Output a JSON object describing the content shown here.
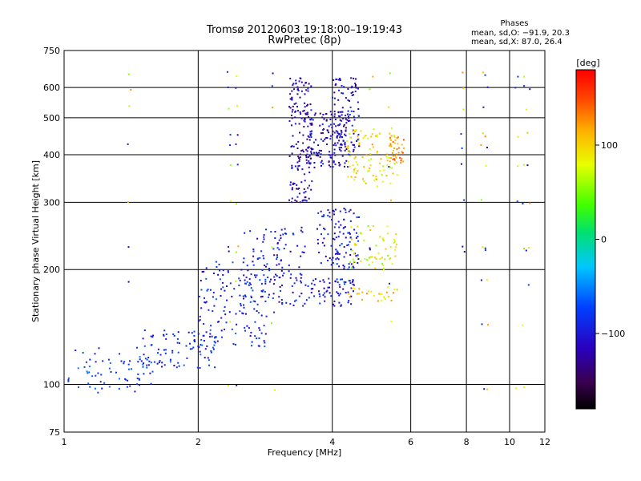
{
  "chart_data": {
    "type": "scatter",
    "title": "Tromsø 20120603 19:18:00–19:19:43",
    "subtitle": "RwPretec (8p)",
    "xlabel": "Frequency [MHz]",
    "ylabel": "Stationary phase Virtual Height [km]",
    "xscale": "log",
    "yscale": "log",
    "xlim": [
      1,
      12
    ],
    "ylim": [
      75,
      750
    ],
    "xticks": [
      1,
      2,
      4,
      6,
      8,
      10,
      12
    ],
    "xtick_labels": [
      "1",
      "2",
      "4",
      "6",
      "8",
      "10",
      "12"
    ],
    "yticks": [
      75,
      100,
      200,
      300,
      400,
      500,
      600,
      750
    ],
    "ytick_labels": [
      "75",
      "100",
      "200",
      "300",
      "400",
      "500",
      "600",
      "750"
    ],
    "grid": true,
    "phases_box": {
      "header": "Phases",
      "line1": "mean, sd,O: −91.9, 20.3",
      "line2": "mean, sd,X:  87.0, 26.4"
    },
    "colorbar": {
      "label": "[deg]",
      "ticks": [
        100,
        0,
        -100
      ],
      "tick_labels": [
        "100",
        "0",
        "−100"
      ],
      "range": [
        -180,
        180
      ],
      "colormap": "rainbow"
    },
    "clusters": [
      {
        "x0": 1.02,
        "x1": 1.6,
        "y0": 95,
        "y1": 125,
        "phase": -80,
        "n": 70
      },
      {
        "x0": 1.5,
        "x1": 2.2,
        "y0": 110,
        "y1": 140,
        "phase": -85,
        "n": 90
      },
      {
        "x0": 2.0,
        "x1": 2.9,
        "y0": 125,
        "y1": 210,
        "phase": -90,
        "n": 140
      },
      {
        "x0": 2.5,
        "x1": 3.1,
        "y0": 150,
        "y1": 260,
        "phase": -95,
        "n": 70
      },
      {
        "x0": 3.0,
        "x1": 3.5,
        "y0": 160,
        "y1": 260,
        "phase": -100,
        "n": 60
      },
      {
        "x0": 3.2,
        "x1": 3.6,
        "y0": 300,
        "y1": 640,
        "phase": -120,
        "n": 160
      },
      {
        "x0": 3.5,
        "x1": 4.4,
        "y0": 370,
        "y1": 520,
        "phase": -115,
        "n": 160
      },
      {
        "x0": 4.0,
        "x1": 4.6,
        "y0": 400,
        "y1": 640,
        "phase": -110,
        "n": 90
      },
      {
        "x0": 3.5,
        "x1": 4.5,
        "y0": 160,
        "y1": 190,
        "phase": -100,
        "n": 70
      },
      {
        "x0": 3.7,
        "x1": 4.6,
        "y0": 200,
        "y1": 290,
        "phase": -100,
        "n": 110
      },
      {
        "x0": 4.3,
        "x1": 5.6,
        "y0": 330,
        "y1": 470,
        "phase": 90,
        "n": 90
      },
      {
        "x0": 4.3,
        "x1": 5.6,
        "y0": 200,
        "y1": 260,
        "phase": 80,
        "n": 60
      },
      {
        "x0": 4.3,
        "x1": 5.6,
        "y0": 165,
        "y1": 180,
        "phase": 100,
        "n": 30
      },
      {
        "x0": 5.3,
        "x1": 5.8,
        "y0": 380,
        "y1": 450,
        "phase": 120,
        "n": 40
      }
    ],
    "noise_columns": [
      1.4,
      2.35,
      2.45,
      2.95,
      4.9,
      5.4,
      7.85,
      8.7,
      8.9,
      10.4,
      10.7,
      11.0
    ],
    "noise_heights": [
      650,
      600,
      530,
      450,
      420,
      375,
      300,
      230,
      225,
      185,
      145,
      98
    ]
  }
}
